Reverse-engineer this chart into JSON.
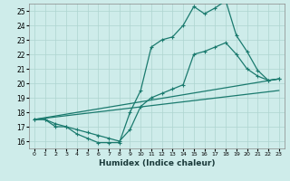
{
  "xlabel": "Humidex (Indice chaleur)",
  "bg_color": "#ceecea",
  "grid_color": "#aed4d0",
  "line_color": "#1a7a6e",
  "xlim": [
    -0.5,
    23.5
  ],
  "ylim": [
    15.5,
    25.5
  ],
  "xticks": [
    0,
    1,
    2,
    3,
    4,
    5,
    6,
    7,
    8,
    9,
    10,
    11,
    12,
    13,
    14,
    15,
    16,
    17,
    18,
    19,
    20,
    21,
    22,
    23
  ],
  "yticks": [
    16,
    17,
    18,
    19,
    20,
    21,
    22,
    23,
    24,
    25
  ],
  "series1_x": [
    0,
    1,
    2,
    3,
    4,
    5,
    6,
    7,
    8,
    9,
    10,
    11,
    12,
    13,
    14,
    15,
    16,
    17,
    18,
    19,
    20,
    21,
    22,
    23
  ],
  "series1_y": [
    17.5,
    17.5,
    17.0,
    17.0,
    16.5,
    16.2,
    15.9,
    15.9,
    15.9,
    18.0,
    19.5,
    22.5,
    23.0,
    23.2,
    24.0,
    25.3,
    24.8,
    25.2,
    25.7,
    23.3,
    22.2,
    20.9,
    20.2,
    20.3
  ],
  "series2_x": [
    0,
    1,
    2,
    3,
    4,
    5,
    6,
    7,
    8,
    9,
    10,
    11,
    12,
    13,
    14,
    15,
    16,
    17,
    18,
    19,
    20,
    21,
    22,
    23
  ],
  "series2_y": [
    17.5,
    17.5,
    17.2,
    17.0,
    16.8,
    16.6,
    16.4,
    16.2,
    16.0,
    16.8,
    18.4,
    19.0,
    19.3,
    19.6,
    19.9,
    22.0,
    22.2,
    22.5,
    22.8,
    22.0,
    21.0,
    20.5,
    20.2,
    20.3
  ],
  "series3_x": [
    0,
    23
  ],
  "series3_y": [
    17.5,
    20.3
  ],
  "series4_x": [
    0,
    23
  ],
  "series4_y": [
    17.5,
    19.5
  ]
}
